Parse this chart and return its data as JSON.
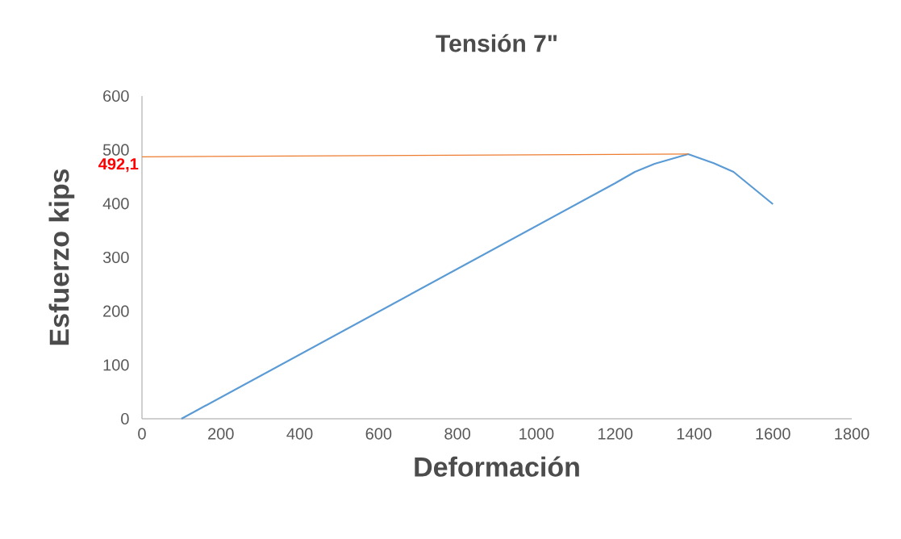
{
  "chart_data": {
    "type": "line",
    "title": "Tensión 7\"",
    "xlabel": "Deformación",
    "ylabel": "Esfuerzo kips",
    "series": [
      {
        "x": [
          100,
          1200,
          1250,
          1300,
          1385,
          1450,
          1500,
          1600
        ],
        "values": [
          0,
          438,
          459,
          474,
          492,
          475,
          459,
          399
        ],
        "color": "#5b9bd5"
      },
      {
        "x": [
          0,
          1385
        ],
        "values": [
          487,
          492.1
        ],
        "color": "#ed7d31"
      }
    ],
    "annotations": [
      {
        "text": "492,1",
        "x": 0,
        "y": 492.1
      }
    ],
    "xlim": [
      0,
      1800
    ],
    "xticks": [
      0,
      200,
      400,
      600,
      800,
      1000,
      1200,
      1400,
      1600,
      1800
    ],
    "ylim": [
      0,
      600
    ],
    "yticks": [
      0,
      100,
      200,
      300,
      400,
      500,
      600
    ],
    "grid": false,
    "marker": "none",
    "line_style": "solid"
  }
}
